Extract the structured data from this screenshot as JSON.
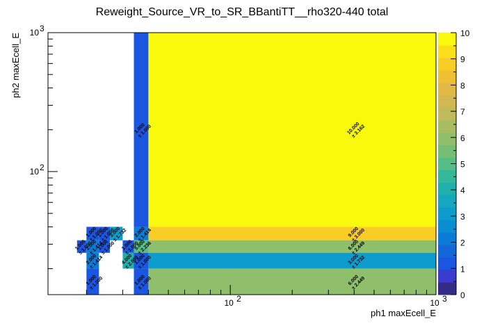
{
  "chart_data": {
    "type": "heatmap",
    "title": "Reweight_Source_VR_to_SR_BBantiTT__rho320-440 total",
    "xlabel": "ph1 maxEcell_E",
    "ylabel": "ph2 maxEcell_E",
    "x_scale": "log",
    "y_scale": "log",
    "xlim": [
      13,
      1000
    ],
    "ylim": [
      13,
      1000
    ],
    "x_ticks": [
      {
        "value": 100,
        "base": "10",
        "exp": "2"
      },
      {
        "value": 1000,
        "base": "10",
        "exp": "3"
      }
    ],
    "y_ticks": [
      {
        "value": 100,
        "base": "10",
        "exp": "2"
      },
      {
        "value": 1000,
        "base": "10",
        "exp": "3"
      }
    ],
    "zlim": [
      0,
      10
    ],
    "z_ticks": [
      0,
      1,
      2,
      3,
      4,
      5,
      6,
      7,
      8,
      9,
      10
    ],
    "palette": [
      "#352a87",
      "#3a3ccf",
      "#1a56e0",
      "#1268d9",
      "#0a7bd6",
      "#0b8dd2",
      "#0e9ccd",
      "#16a6be",
      "#1eb0ad",
      "#33b89a",
      "#56bd86",
      "#75bf75",
      "#8fbf6a",
      "#a8bd62",
      "#bfba5c",
      "#d2b852",
      "#e2ba43",
      "#f0c033",
      "#f8cd25",
      "#fbdf1a",
      "#f9f90e"
    ],
    "cells": [
      {
        "x0": 20,
        "x1": 23,
        "y0": 32,
        "y1": 40,
        "value": 1.0,
        "error": 1.0,
        "label": "1.000",
        "err_label": "± 1.000"
      },
      {
        "x0": 23,
        "x1": 26,
        "y0": 32,
        "y1": 40,
        "value": 1.0,
        "error": 1.0,
        "label": "1.000",
        "err_label": "± 1.000"
      },
      {
        "x0": 26,
        "x1": 30,
        "y0": 32,
        "y1": 40,
        "value": 3.0,
        "error": 1.732,
        "label": "3.000",
        "err_label": "± 1.732"
      },
      {
        "x0": 34,
        "x1": 40,
        "y0": 32,
        "y1": 40,
        "value": 2.0,
        "error": 1.414,
        "label": "2.000",
        "err_label": "± 1.414"
      },
      {
        "x0": 40,
        "x1": 1000,
        "y0": 32,
        "y1": 40,
        "value": 9.0,
        "error": 3.0,
        "label": "9.000",
        "err_label": "± 3.000"
      },
      {
        "x0": 18,
        "x1": 20,
        "y0": 26,
        "y1": 32,
        "value": 1.0,
        "error": 1.0,
        "label": "1.000",
        "err_label": "± 1.000"
      },
      {
        "x0": 20,
        "x1": 23,
        "y0": 26,
        "y1": 32,
        "value": 2.0,
        "error": 1.414,
        "label": "2.000",
        "err_label": "± 1.414"
      },
      {
        "x0": 23,
        "x1": 26,
        "y0": 26,
        "y1": 32,
        "value": 1.0,
        "error": 1.0,
        "label": "1.000",
        "err_label": "± 1.000"
      },
      {
        "x0": 30,
        "x1": 34,
        "y0": 26,
        "y1": 32,
        "value": 1.0,
        "error": 1.0,
        "label": "1.000",
        "err_label": "± 1.000"
      },
      {
        "x0": 34,
        "x1": 40,
        "y0": 26,
        "y1": 32,
        "value": 5.0,
        "error": 2.236,
        "label": "5.000",
        "err_label": "± 2.236"
      },
      {
        "x0": 40,
        "x1": 1000,
        "y0": 26,
        "y1": 32,
        "value": 6.0,
        "error": 2.449,
        "label": "6.000",
        "err_label": "± 2.449"
      },
      {
        "x0": 20,
        "x1": 23,
        "y0": 20,
        "y1": 26,
        "value": 2.0,
        "error": 1.414,
        "label": "2.000",
        "err_label": "± 1.414"
      },
      {
        "x0": 30,
        "x1": 34,
        "y0": 20,
        "y1": 26,
        "value": 4.0,
        "error": 2.0,
        "label": "4.000",
        "err_label": "± 2.000"
      },
      {
        "x0": 34,
        "x1": 40,
        "y0": 20,
        "y1": 26,
        "value": 1.0,
        "error": 1.0,
        "label": "1.000",
        "err_label": "± 1.000"
      },
      {
        "x0": 40,
        "x1": 1000,
        "y0": 20,
        "y1": 26,
        "value": 3.0,
        "error": 1.732,
        "label": "3.000",
        "err_label": "± 1.732"
      },
      {
        "x0": 20,
        "x1": 23,
        "y0": 13,
        "y1": 20,
        "value": 1.0,
        "error": 1.0,
        "label": "1.000",
        "err_label": "± 1.000"
      },
      {
        "x0": 34,
        "x1": 40,
        "y0": 13,
        "y1": 20,
        "value": 1.0,
        "error": 1.0,
        "label": "1.000",
        "err_label": "± 1.000"
      },
      {
        "x0": 40,
        "x1": 1000,
        "y0": 13,
        "y1": 20,
        "value": 6.0,
        "error": 2.449,
        "label": "6.000",
        "err_label": "± 2.449"
      },
      {
        "x0": 34,
        "x1": 40,
        "y0": 40,
        "y1": 1000,
        "value": 1.0,
        "error": 1.0,
        "label": "1.000",
        "err_label": "± 1.000"
      },
      {
        "x0": 40,
        "x1": 1000,
        "y0": 40,
        "y1": 1000,
        "value": 10.0,
        "error": 3.162,
        "label": "10.000",
        "err_label": "± 3.162"
      }
    ]
  }
}
